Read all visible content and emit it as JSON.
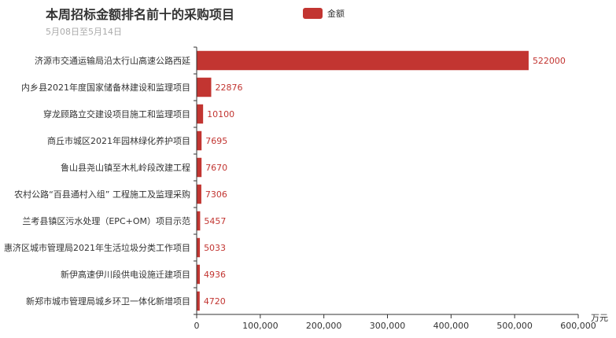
{
  "chart_data": {
    "type": "bar",
    "orientation": "horizontal",
    "title": "本周招标金额排名前十的采购项目",
    "subtitle": "5月08日至5月14日",
    "legend_position": "top",
    "xlabel": "万元",
    "xlim": [
      0,
      600000
    ],
    "x_ticks": [
      0,
      100000,
      200000,
      300000,
      400000,
      500000,
      600000
    ],
    "x_tick_labels": [
      "0",
      "100,000",
      "200,000",
      "300,000",
      "400,000",
      "500,000",
      "600,000"
    ],
    "grid": false,
    "categories": [
      "济源市交通运输局沿太行山高速公路西延",
      "内乡县2021年度国家储备林建设和监理项目",
      "穿龙顾路立交建设项目施工和监理项目",
      "商丘市城区2021年园林绿化养护项目",
      "鲁山县尧山镇至木札岭段改建工程",
      "农村公路“百县通村入组” 工程施工及监理采购",
      "兰考县镇区污水处理（EPC+OM）项目示范",
      "惠济区城市管理局2021年生活垃圾分类工作项目",
      "新伊高速伊川段供电设施迁建项目",
      "新郑市城市管理局城乡环卫一体化新增项目"
    ],
    "series": [
      {
        "name": "金额",
        "color": "#c23531",
        "values": [
          522000,
          22876,
          10100,
          7695,
          7670,
          7306,
          5457,
          5033,
          4936,
          4720
        ]
      }
    ]
  }
}
